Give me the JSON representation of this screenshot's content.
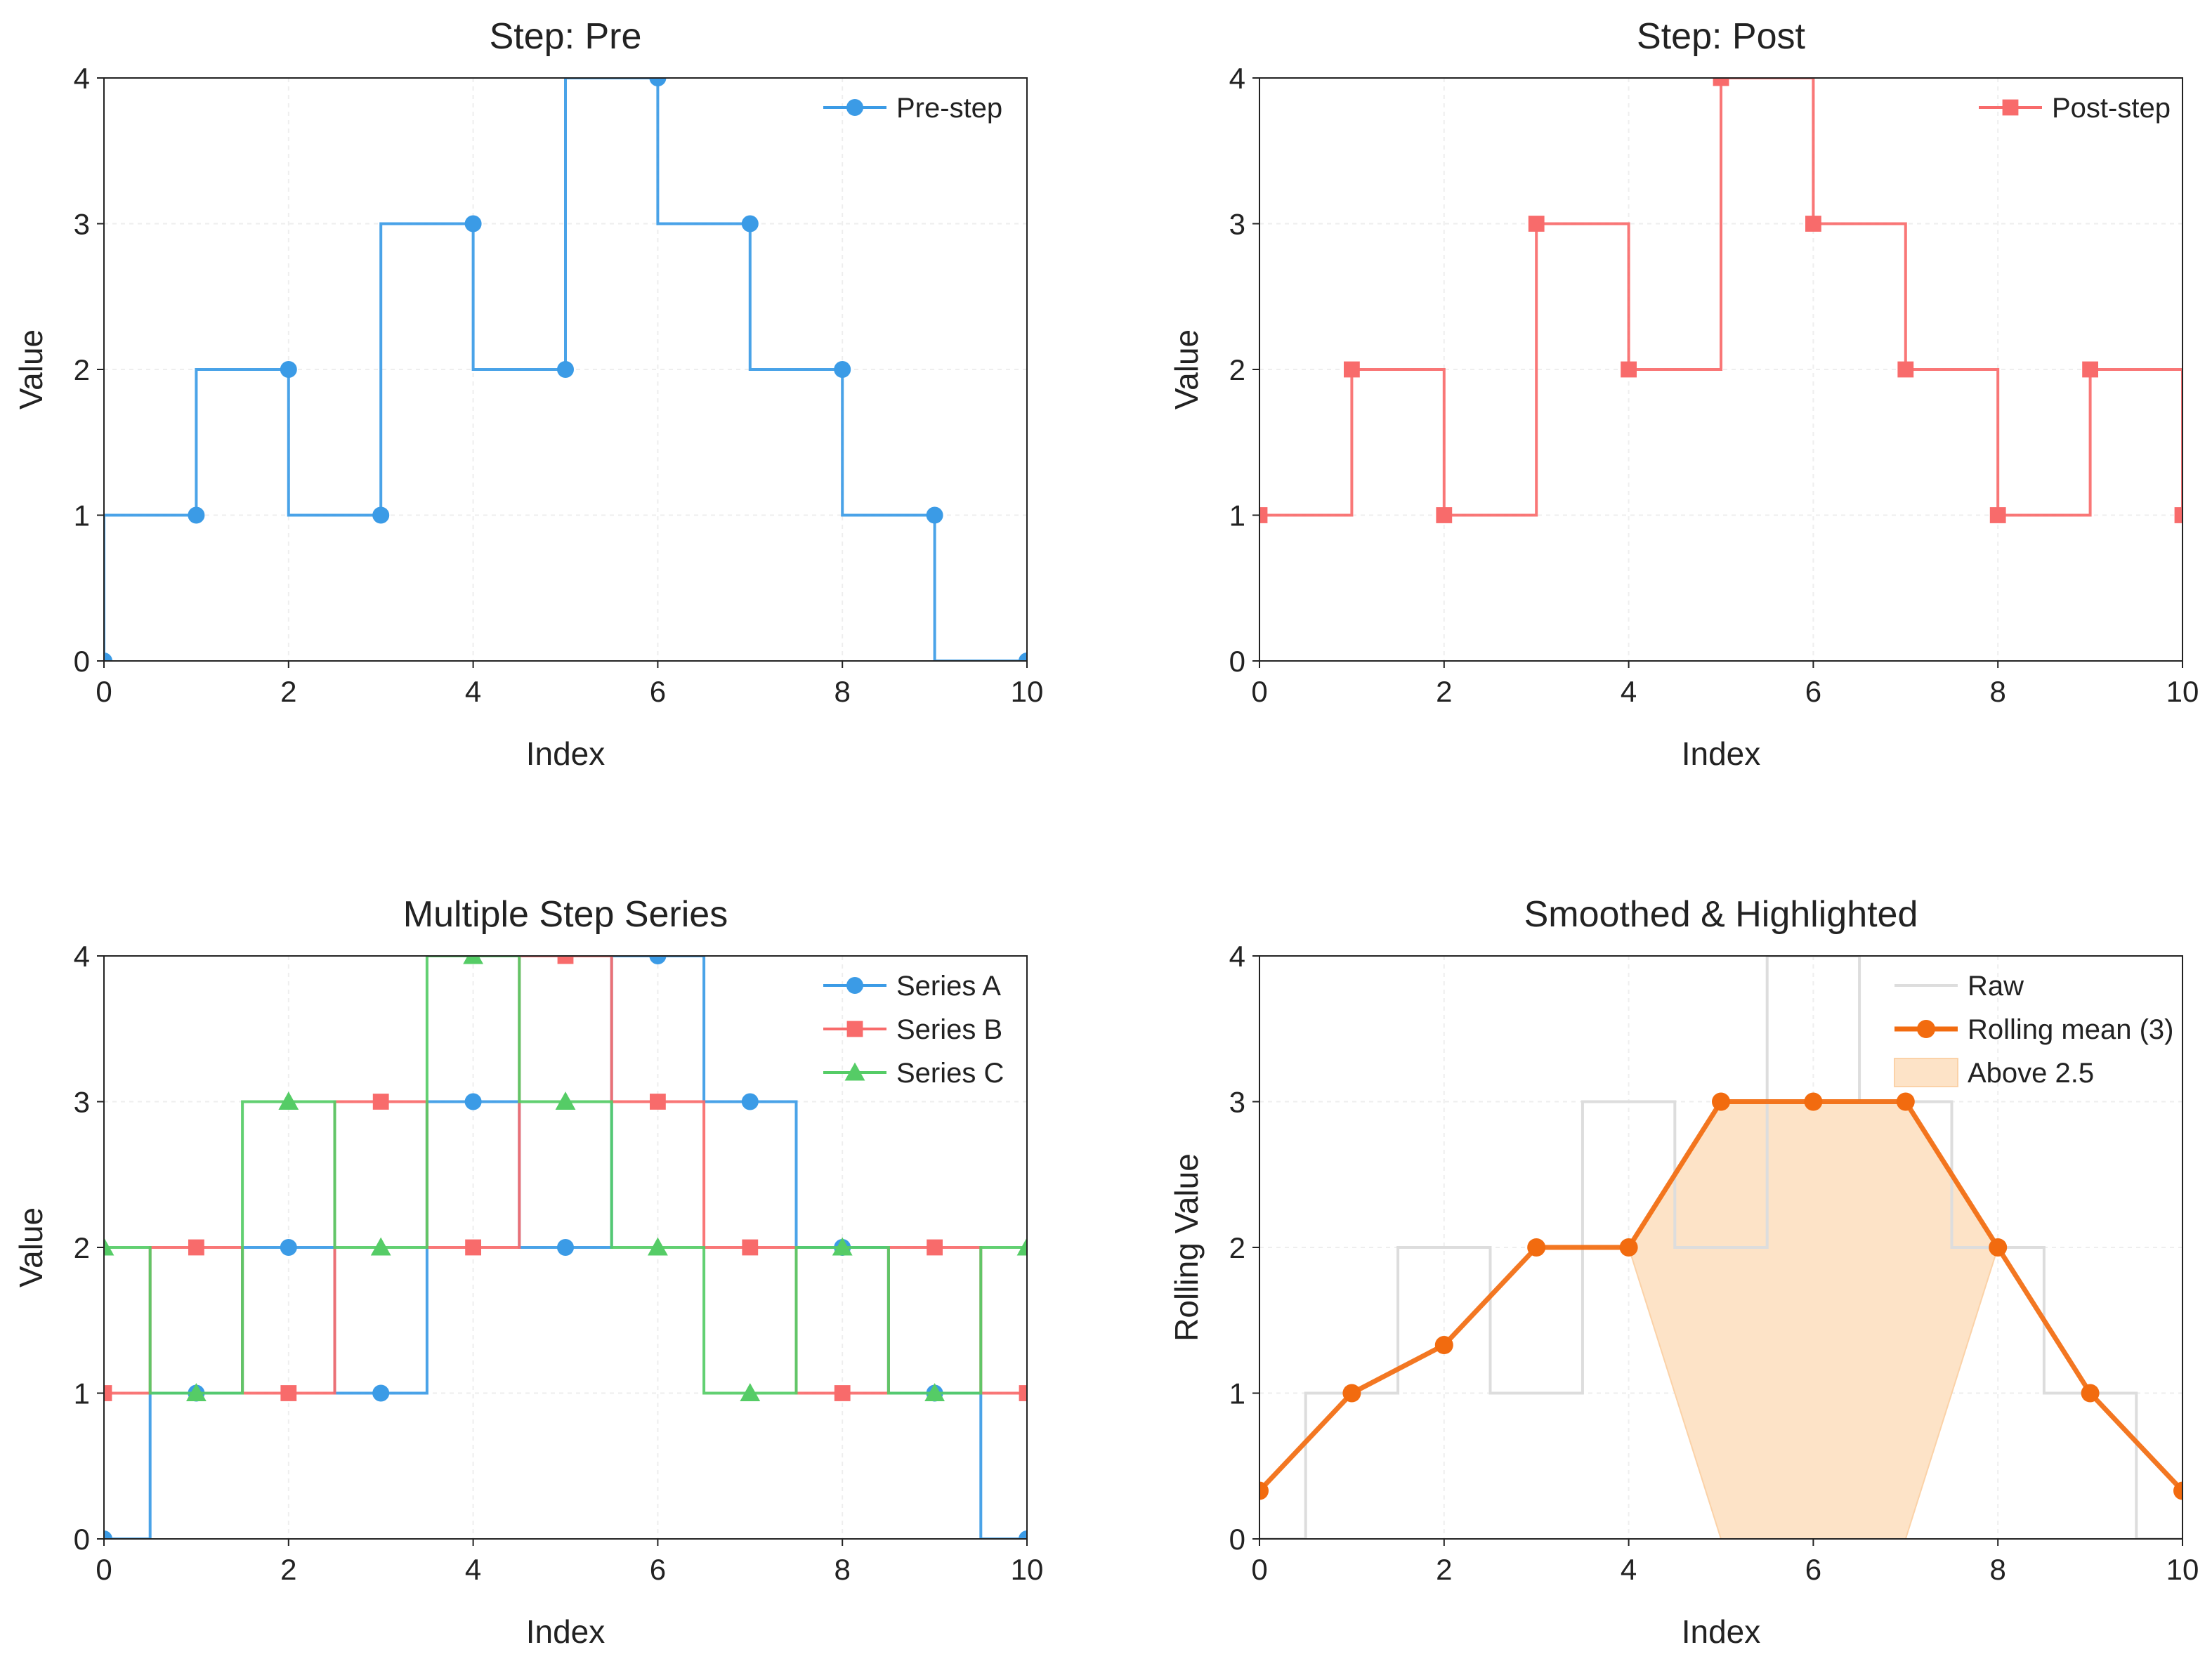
{
  "chart_data": [
    {
      "type": "line",
      "step": "pre",
      "title": "Step: Pre",
      "xlabel": "Index",
      "ylabel": "Value",
      "xlim": [
        0,
        10
      ],
      "ylim": [
        0,
        4
      ],
      "xticks": [
        0,
        2,
        4,
        6,
        8,
        10
      ],
      "yticks": [
        0,
        1,
        2,
        3,
        4
      ],
      "grid": true,
      "legend_position": "top-right",
      "series": [
        {
          "name": "Pre-step",
          "color": "#3b9be6",
          "marker": "circle",
          "drawstyle": "steps-pre",
          "x": [
            0,
            1,
            2,
            3,
            4,
            5,
            6,
            7,
            8,
            9,
            10
          ],
          "values": [
            0,
            1,
            2,
            1,
            3,
            2,
            4,
            3,
            2,
            1,
            0
          ]
        }
      ]
    },
    {
      "type": "line",
      "step": "post",
      "title": "Step: Post",
      "xlabel": "Index",
      "ylabel": "Value",
      "xlim": [
        0,
        10
      ],
      "ylim": [
        0,
        4
      ],
      "xticks": [
        0,
        2,
        4,
        6,
        8,
        10
      ],
      "yticks": [
        0,
        1,
        2,
        3,
        4
      ],
      "grid": true,
      "legend_position": "top-right",
      "series": [
        {
          "name": "Post-step",
          "color": "#f86b6b",
          "marker": "square",
          "drawstyle": "steps-post",
          "x": [
            0,
            1,
            2,
            3,
            4,
            5,
            6,
            7,
            8,
            9,
            10
          ],
          "values": [
            1,
            2,
            1,
            3,
            2,
            4,
            3,
            2,
            1,
            2,
            1
          ]
        }
      ]
    },
    {
      "type": "line",
      "step": "mid",
      "title": "Multiple Step Series",
      "xlabel": "Index",
      "ylabel": "Value",
      "xlim": [
        0,
        10
      ],
      "ylim": [
        0,
        4
      ],
      "xticks": [
        0,
        2,
        4,
        6,
        8,
        10
      ],
      "yticks": [
        0,
        1,
        2,
        3,
        4
      ],
      "grid": true,
      "legend_position": "top-right",
      "series": [
        {
          "name": "Series A",
          "color": "#3b9be6",
          "marker": "circle",
          "drawstyle": "steps-mid",
          "x": [
            0,
            1,
            2,
            3,
            4,
            5,
            6,
            7,
            8,
            9,
            10
          ],
          "values": [
            0,
            1,
            2,
            1,
            3,
            2,
            4,
            3,
            2,
            1,
            0
          ]
        },
        {
          "name": "Series B",
          "color": "#f86b6b",
          "marker": "square",
          "drawstyle": "steps-mid",
          "x": [
            0,
            1,
            2,
            3,
            4,
            5,
            6,
            7,
            8,
            9,
            10
          ],
          "values": [
            1,
            2,
            1,
            3,
            2,
            4,
            3,
            2,
            1,
            2,
            1
          ]
        },
        {
          "name": "Series C",
          "color": "#55cc66",
          "marker": "triangle",
          "drawstyle": "steps-mid",
          "x": [
            0,
            1,
            2,
            3,
            4,
            5,
            6,
            7,
            8,
            9,
            10
          ],
          "values": [
            2,
            1,
            3,
            2,
            4,
            3,
            2,
            1,
            2,
            1,
            2
          ]
        }
      ]
    },
    {
      "type": "line",
      "title": "Smoothed & Highlighted",
      "xlabel": "Index",
      "ylabel": "Rolling Value",
      "xlim": [
        0,
        10
      ],
      "ylim": [
        0,
        4
      ],
      "xticks": [
        0,
        2,
        4,
        6,
        8,
        10
      ],
      "yticks": [
        0,
        1,
        2,
        3,
        4
      ],
      "grid": true,
      "legend_position": "top-right",
      "series": [
        {
          "name": "Raw",
          "color": "#dddddd",
          "marker": "none",
          "drawstyle": "steps-mid",
          "x": [
            0,
            1,
            2,
            3,
            4,
            5,
            6,
            7,
            8,
            9,
            10
          ],
          "values": [
            0,
            1,
            2,
            1,
            3,
            2,
            4,
            3,
            2,
            1,
            0
          ]
        },
        {
          "name": "Rolling mean (3)",
          "color": "#f26b0f",
          "marker": "circle",
          "drawstyle": "default",
          "x": [
            0,
            1,
            2,
            3,
            4,
            5,
            6,
            7,
            8,
            9,
            10
          ],
          "values": [
            0.33,
            1,
            1.33,
            2,
            2,
            3,
            3,
            3,
            2,
            1,
            0.33
          ]
        }
      ],
      "fill": {
        "name": "Above 2.5",
        "color": "#fde3c7",
        "edge_color": "#fbd2a8",
        "threshold": 2.5,
        "x": [
          4,
          5,
          6,
          7,
          8
        ],
        "y_top": [
          2,
          3,
          3,
          3,
          2
        ],
        "y_bottom": [
          2,
          0,
          0,
          0,
          2
        ]
      }
    }
  ]
}
